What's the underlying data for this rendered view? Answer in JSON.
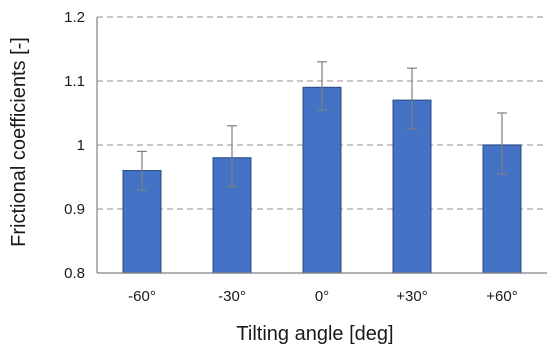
{
  "chart_data": {
    "type": "bar",
    "title": "",
    "xlabel": "Tilting angle [deg]",
    "ylabel": "Frictional coefficients [-]",
    "categories": [
      "-60°",
      "-30°",
      "0°",
      "+30°",
      "+60°"
    ],
    "values": [
      0.96,
      0.98,
      1.09,
      1.07,
      1.0
    ],
    "error_bars": [
      {
        "low": 0.93,
        "high": 0.99
      },
      {
        "low": 0.935,
        "high": 1.03
      },
      {
        "low": 1.055,
        "high": 1.13
      },
      {
        "low": 1.025,
        "high": 1.12
      },
      {
        "low": 0.955,
        "high": 1.05
      }
    ],
    "ylim": [
      0.8,
      1.2
    ],
    "yticks": [
      "0.8",
      "0.9",
      "1",
      "1.1",
      "1.2"
    ],
    "grid": "horizontal dashed",
    "legend": "none",
    "bar_color": "#4472c4",
    "bar_edge_color": "#2f528f",
    "grid_color": "#a6a6a6",
    "error_bar_color": "#7f7f7f"
  }
}
